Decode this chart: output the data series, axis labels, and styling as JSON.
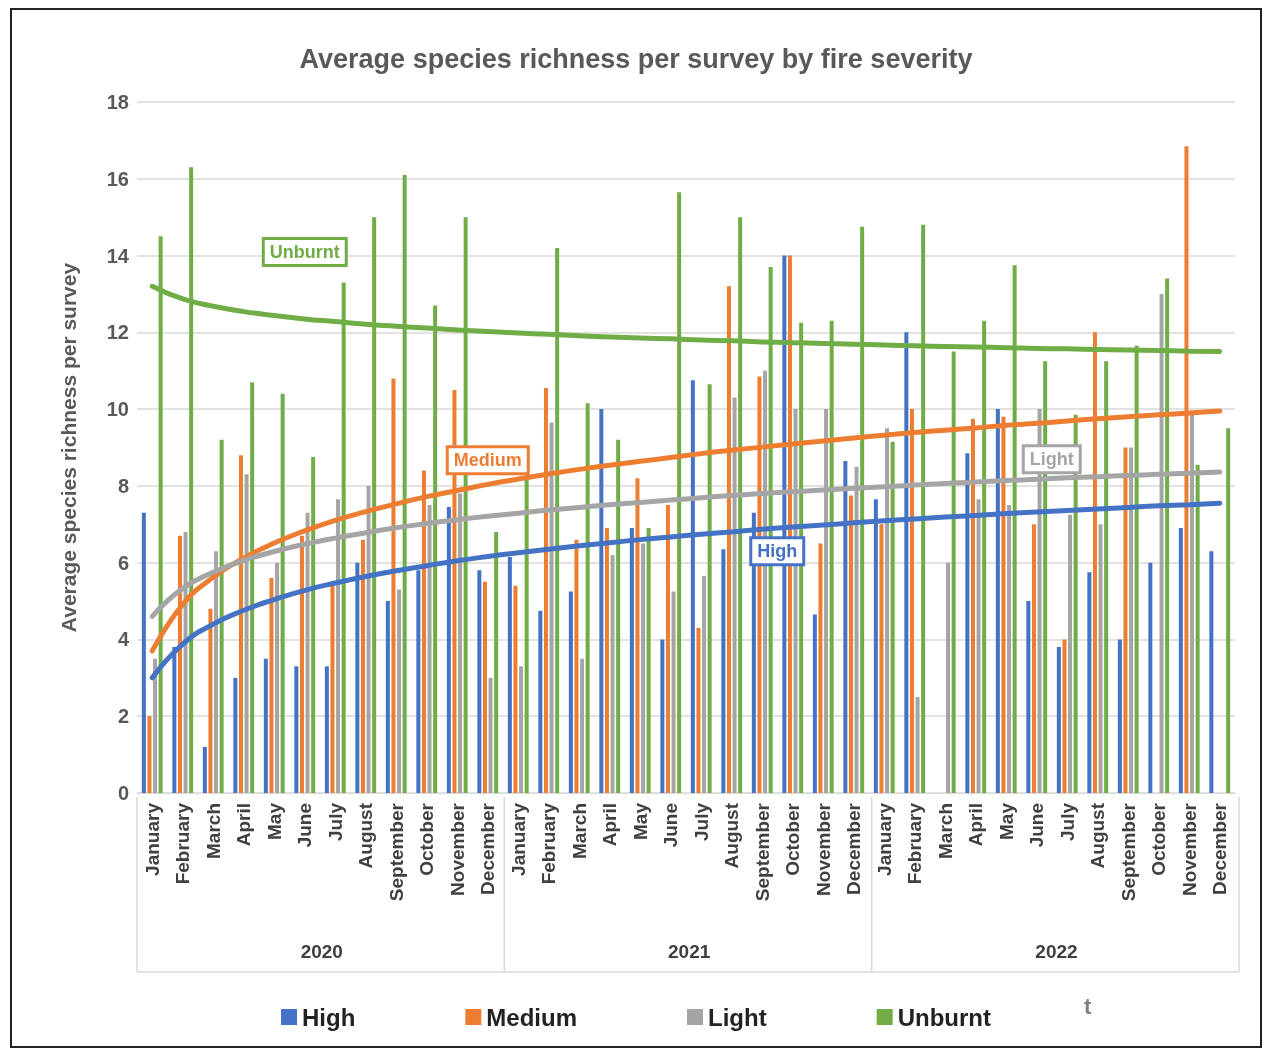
{
  "chart_data": {
    "type": "bar",
    "title": "Average species richness per survey by fire severity",
    "ylabel": "Average species richness per survey",
    "categories": [
      "January",
      "February",
      "March",
      "April",
      "May",
      "June",
      "July",
      "August",
      "September",
      "October",
      "November",
      "December",
      "January",
      "February",
      "March",
      "April",
      "May",
      "June",
      "July",
      "August",
      "September",
      "October",
      "November",
      "December",
      "January",
      "February",
      "March",
      "April",
      "May",
      "June",
      "July",
      "August",
      "September",
      "October",
      "November",
      "December"
    ],
    "series": [
      {
        "name": "High",
        "color": "#4472c4",
        "values": [
          7.3,
          3.8,
          1.2,
          3.0,
          3.5,
          3.3,
          3.3,
          6.0,
          5.0,
          5.8,
          7.45,
          5.8,
          6.15,
          4.75,
          5.25,
          10.0,
          6.9,
          4.0,
          10.75,
          6.35,
          7.3,
          14.0,
          4.65,
          8.65,
          7.65,
          12.0,
          0,
          8.85,
          10.0,
          5.0,
          3.8,
          5.75,
          4.0,
          6.0,
          6.9,
          6.3
        ]
      },
      {
        "name": "Medium",
        "color": "#ed7d31",
        "values": [
          2.0,
          6.7,
          4.8,
          8.8,
          5.6,
          6.7,
          5.4,
          6.6,
          10.8,
          8.4,
          10.5,
          5.5,
          5.4,
          10.55,
          6.6,
          6.9,
          8.2,
          7.5,
          4.3,
          13.2,
          10.85,
          14.0,
          6.5,
          7.75,
          7.0,
          10.0,
          0,
          9.75,
          9.8,
          7.0,
          4.0,
          12.0,
          9.0,
          0,
          16.85,
          0
        ]
      },
      {
        "name": "Light",
        "color": "#a5a5a5",
        "values": [
          3.5,
          6.8,
          6.3,
          8.3,
          6.0,
          7.3,
          7.65,
          8.0,
          5.3,
          7.5,
          7.8,
          3.0,
          3.3,
          9.65,
          3.5,
          6.2,
          6.5,
          5.25,
          5.65,
          10.3,
          11.0,
          10.0,
          10.0,
          8.5,
          9.5,
          2.5,
          6.0,
          7.65,
          7.5,
          10.0,
          7.25,
          7.0,
          9.0,
          13.0,
          9.9,
          0
        ]
      },
      {
        "name": "Unburnt",
        "color": "#70ad47",
        "values": [
          14.5,
          16.3,
          9.2,
          10.7,
          10.4,
          8.75,
          13.3,
          15.0,
          16.1,
          12.7,
          15.0,
          6.8,
          8.2,
          14.2,
          10.15,
          9.2,
          6.9,
          15.65,
          10.65,
          15.0,
          13.7,
          12.25,
          12.3,
          14.75,
          9.15,
          14.8,
          11.5,
          12.3,
          13.75,
          11.25,
          9.85,
          11.25,
          11.65,
          13.4,
          8.55,
          9.5
        ]
      },
      {
        "name": "High",
        "type": "line",
        "color": "#4472c4",
        "values": [
          3.0,
          3.88,
          4.4,
          4.76,
          5.04,
          5.28,
          5.47,
          5.64,
          5.79,
          5.92,
          6.05,
          6.16,
          6.26,
          6.35,
          6.44,
          6.52,
          6.6,
          6.67,
          6.74,
          6.8,
          6.87,
          6.93,
          6.98,
          7.04,
          7.09,
          7.14,
          7.19,
          7.23,
          7.28,
          7.32,
          7.36,
          7.4,
          7.44,
          7.48,
          7.51,
          7.55
        ]
      },
      {
        "name": "Medium",
        "type": "line",
        "color": "#ed7d31",
        "values": [
          3.7,
          4.91,
          5.62,
          6.12,
          6.51,
          6.83,
          7.1,
          7.33,
          7.53,
          7.72,
          7.88,
          8.04,
          8.18,
          8.31,
          8.43,
          8.54,
          8.64,
          8.74,
          8.84,
          8.93,
          9.01,
          9.09,
          9.17,
          9.25,
          9.32,
          9.39,
          9.45,
          9.51,
          9.58,
          9.63,
          9.69,
          9.75,
          9.8,
          9.85,
          9.9,
          9.95
        ]
      },
      {
        "name": "Light",
        "type": "line",
        "color": "#a5a5a5",
        "values": [
          4.6,
          5.33,
          5.75,
          6.06,
          6.29,
          6.48,
          6.64,
          6.78,
          6.91,
          7.02,
          7.12,
          7.21,
          7.29,
          7.37,
          7.44,
          7.51,
          7.57,
          7.63,
          7.69,
          7.75,
          7.8,
          7.85,
          7.89,
          7.94,
          7.98,
          8.02,
          8.06,
          8.1,
          8.14,
          8.17,
          8.21,
          8.24,
          8.27,
          8.3,
          8.33,
          8.36
        ]
      },
      {
        "name": "Unburnt",
        "type": "line",
        "color": "#70ad47",
        "values": [
          13.2,
          12.87,
          12.68,
          12.54,
          12.44,
          12.35,
          12.28,
          12.21,
          12.16,
          12.11,
          12.06,
          12.02,
          11.98,
          11.95,
          11.91,
          11.88,
          11.85,
          11.83,
          11.8,
          11.78,
          11.75,
          11.73,
          11.71,
          11.69,
          11.67,
          11.65,
          11.63,
          11.62,
          11.6,
          11.58,
          11.57,
          11.55,
          11.54,
          11.53,
          11.51,
          11.5
        ]
      }
    ],
    "marker": "none",
    "line_style": "solid",
    "annotations": [
      "2020",
      "2021",
      "2022",
      "t"
    ],
    "ylim": [
      0,
      18
    ],
    "yticks": [
      0,
      2,
      4,
      6,
      8,
      10,
      12,
      14,
      16,
      18
    ],
    "grid": "y",
    "legend": "bottom"
  }
}
